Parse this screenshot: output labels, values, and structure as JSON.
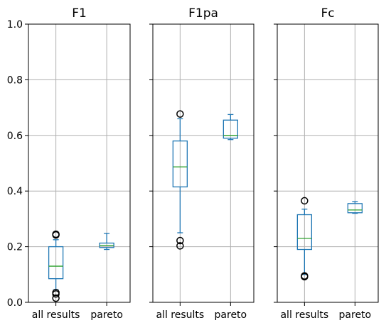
{
  "chart_data": {
    "type": "boxplot",
    "ylim": [
      0.0,
      1.0
    ],
    "yticks": [
      "0.0",
      "0.2",
      "0.4",
      "0.6",
      "0.8",
      "1.0"
    ],
    "categories": [
      "all results",
      "pareto"
    ],
    "grid": true,
    "panels": [
      {
        "title": "F1",
        "boxes": [
          {
            "category": "all results",
            "whisker_low": 0.045,
            "q1": 0.085,
            "median": 0.13,
            "q3": 0.2,
            "whisker_high": 0.225,
            "outliers": [
              0.245,
              0.242,
              0.035,
              0.03,
              0.015
            ]
          },
          {
            "category": "pareto",
            "whisker_low": 0.19,
            "q1": 0.197,
            "median": 0.205,
            "q3": 0.213,
            "whisker_high": 0.248,
            "outliers": []
          }
        ]
      },
      {
        "title": "F1pa",
        "boxes": [
          {
            "category": "all results",
            "whisker_low": 0.25,
            "q1": 0.415,
            "median": 0.487,
            "q3": 0.58,
            "whisker_high": 0.66,
            "outliers": [
              0.677,
              0.222,
              0.203
            ]
          },
          {
            "category": "pareto",
            "whisker_low": 0.585,
            "q1": 0.59,
            "median": 0.6,
            "q3": 0.655,
            "whisker_high": 0.675,
            "outliers": []
          }
        ]
      },
      {
        "title": "Fc",
        "boxes": [
          {
            "category": "all results",
            "whisker_low": 0.1,
            "q1": 0.19,
            "median": 0.23,
            "q3": 0.315,
            "whisker_high": 0.335,
            "outliers": [
              0.365,
              0.095,
              0.092
            ]
          },
          {
            "category": "pareto",
            "whisker_low": 0.32,
            "q1": 0.322,
            "median": 0.332,
            "q3": 0.355,
            "whisker_high": 0.362,
            "outliers": []
          }
        ]
      }
    ],
    "colors": {
      "box": "#1f77b4",
      "median": "#2ca02c",
      "outlier": "#000000",
      "grid": "#b0b0b0",
      "axes": "#000000"
    }
  }
}
